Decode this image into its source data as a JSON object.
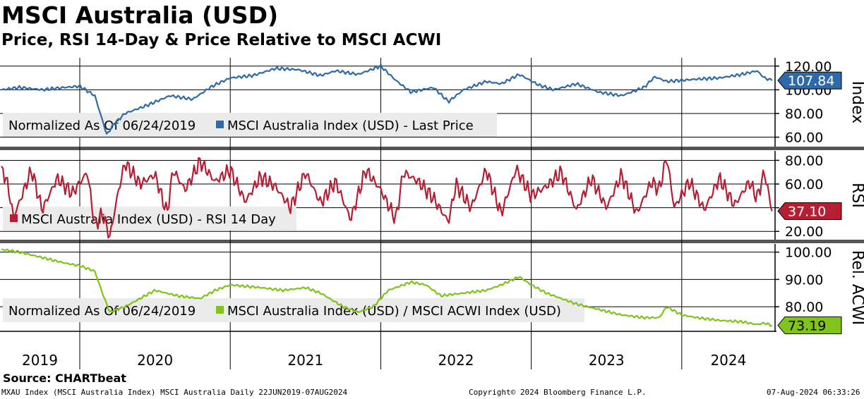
{
  "title": "MSCI Australia (USD)",
  "subtitle": "Price, RSI 14-Day & Price Relative to MSCI ACWI",
  "source": "Source: CHARTbeat",
  "footer": {
    "left": "MXAU Index (MSCI Australia Index) MSCI Australia  Daily 22JUN2019-07AUG2024",
    "center": "Copyright© 2024 Bloomberg Finance L.P.",
    "right": "07-Aug-2024 06:33:26"
  },
  "colors": {
    "price": "#2e6aa8",
    "rsi": "#b51e33",
    "relative": "#7fc31c"
  },
  "chart_data": [
    {
      "type": "line",
      "panel": "price",
      "ylabel": "Index",
      "ylim": [
        52,
        127
      ],
      "yticks": [
        60,
        80,
        100,
        120
      ],
      "tick_labels": [
        "60.00",
        "80.00",
        "100.00",
        "120.00"
      ],
      "legend_note": "Normalized As Of 06/24/2019",
      "series_name": "MSCI Australia Index (USD) - Last Price",
      "last_value_label": "107.84",
      "x": [
        2019.48,
        2019.6,
        2019.75,
        2019.9,
        2020.0,
        2020.1,
        2020.18,
        2020.22,
        2020.3,
        2020.45,
        2020.6,
        2020.75,
        2020.88,
        2021.0,
        2021.15,
        2021.3,
        2021.45,
        2021.6,
        2021.7,
        2021.85,
        2022.0,
        2022.1,
        2022.2,
        2022.35,
        2022.45,
        2022.55,
        2022.7,
        2022.8,
        2022.92,
        2023.05,
        2023.15,
        2023.3,
        2023.45,
        2023.6,
        2023.75,
        2023.82,
        2023.9,
        2024.0,
        2024.1,
        2024.25,
        2024.4,
        2024.5,
        2024.55,
        2024.6
      ],
      "values": [
        100,
        102,
        100,
        102,
        103,
        95,
        62,
        70,
        80,
        87,
        95,
        92,
        103,
        110,
        112,
        118,
        117,
        112,
        116,
        113,
        120,
        108,
        98,
        102,
        90,
        100,
        107,
        105,
        113,
        104,
        100,
        105,
        98,
        95,
        102,
        111,
        107,
        108,
        109,
        110,
        113,
        116,
        110,
        107.84
      ]
    },
    {
      "type": "line",
      "panel": "rsi",
      "ylabel": "RSI",
      "ylim": [
        13,
        88
      ],
      "yticks": [
        20,
        40,
        60,
        80
      ],
      "tick_labels": [
        "20.00",
        "40.00",
        "60.00",
        "80.00"
      ],
      "series_name": "MSCI Australia Index (USD) - RSI 14 Day",
      "last_value_label": "37.10",
      "x": [
        2019.48,
        2019.52,
        2019.56,
        2019.6,
        2019.68,
        2019.75,
        2019.85,
        2019.95,
        2020.05,
        2020.1,
        2020.15,
        2020.2,
        2020.25,
        2020.3,
        2020.4,
        2020.5,
        2020.58,
        2020.62,
        2020.7,
        2020.8,
        2020.9,
        2021.0,
        2021.1,
        2021.2,
        2021.3,
        2021.4,
        2021.5,
        2021.6,
        2021.7,
        2021.8,
        2021.9,
        2022.0,
        2022.1,
        2022.15,
        2022.25,
        2022.35,
        2022.45,
        2022.5,
        2022.6,
        2022.7,
        2022.8,
        2022.9,
        2023.0,
        2023.1,
        2023.2,
        2023.3,
        2023.4,
        2023.5,
        2023.6,
        2023.7,
        2023.8,
        2023.85,
        2023.9,
        2023.95,
        2024.05,
        2024.15,
        2024.25,
        2024.35,
        2024.45,
        2024.5,
        2024.55,
        2024.58,
        2024.6
      ],
      "values": [
        75,
        60,
        32,
        45,
        72,
        38,
        65,
        52,
        70,
        25,
        35,
        15,
        50,
        78,
        60,
        68,
        35,
        72,
        55,
        79,
        62,
        72,
        45,
        66,
        58,
        40,
        70,
        44,
        62,
        30,
        72,
        55,
        30,
        70,
        62,
        48,
        28,
        60,
        40,
        72,
        35,
        73,
        50,
        58,
        70,
        38,
        65,
        40,
        68,
        35,
        62,
        55,
        83,
        40,
        62,
        38,
        65,
        42,
        62,
        48,
        70,
        50,
        37.1
      ]
    },
    {
      "type": "line",
      "panel": "relative",
      "ylabel": "Rel. ACWI",
      "ylim": [
        71,
        103
      ],
      "yticks": [
        80,
        90,
        100
      ],
      "tick_labels": [
        "80.00",
        "90.00",
        "100.00"
      ],
      "legend_note": "Normalized As Of 06/24/2019",
      "series_name": "MSCI Australia Index (USD) / MSCI ACWI Index (USD)",
      "last_value_label": "73.19",
      "x": [
        2019.48,
        2019.6,
        2019.75,
        2019.9,
        2020.0,
        2020.1,
        2020.15,
        2020.2,
        2020.3,
        2020.5,
        2020.65,
        2020.8,
        2020.9,
        2021.0,
        2021.2,
        2021.35,
        2021.5,
        2021.6,
        2021.75,
        2021.85,
        2021.95,
        2022.05,
        2022.2,
        2022.3,
        2022.4,
        2022.55,
        2022.7,
        2022.8,
        2022.88,
        2022.92,
        2023.0,
        2023.1,
        2023.2,
        2023.3,
        2023.45,
        2023.6,
        2023.75,
        2023.85,
        2023.9,
        2024.0,
        2024.1,
        2024.25,
        2024.4,
        2024.5,
        2024.55,
        2024.6
      ],
      "values": [
        101,
        100,
        98,
        96,
        95,
        93,
        85,
        78,
        80,
        86,
        84,
        83,
        86,
        88,
        87,
        86,
        87,
        85,
        80,
        78,
        80,
        86,
        89,
        88,
        84,
        85,
        86,
        88,
        90,
        91,
        88,
        85,
        83,
        81,
        79,
        77,
        76,
        76,
        80,
        77,
        76,
        75,
        74.5,
        73.5,
        74,
        73.19
      ]
    }
  ],
  "x_axis": {
    "years": [
      "2019",
      "2020",
      "2021",
      "2022",
      "2023",
      "2024"
    ],
    "range": [
      2019.47,
      2024.62
    ],
    "boundaries": [
      2020,
      2021,
      2022,
      2023,
      2024
    ]
  }
}
